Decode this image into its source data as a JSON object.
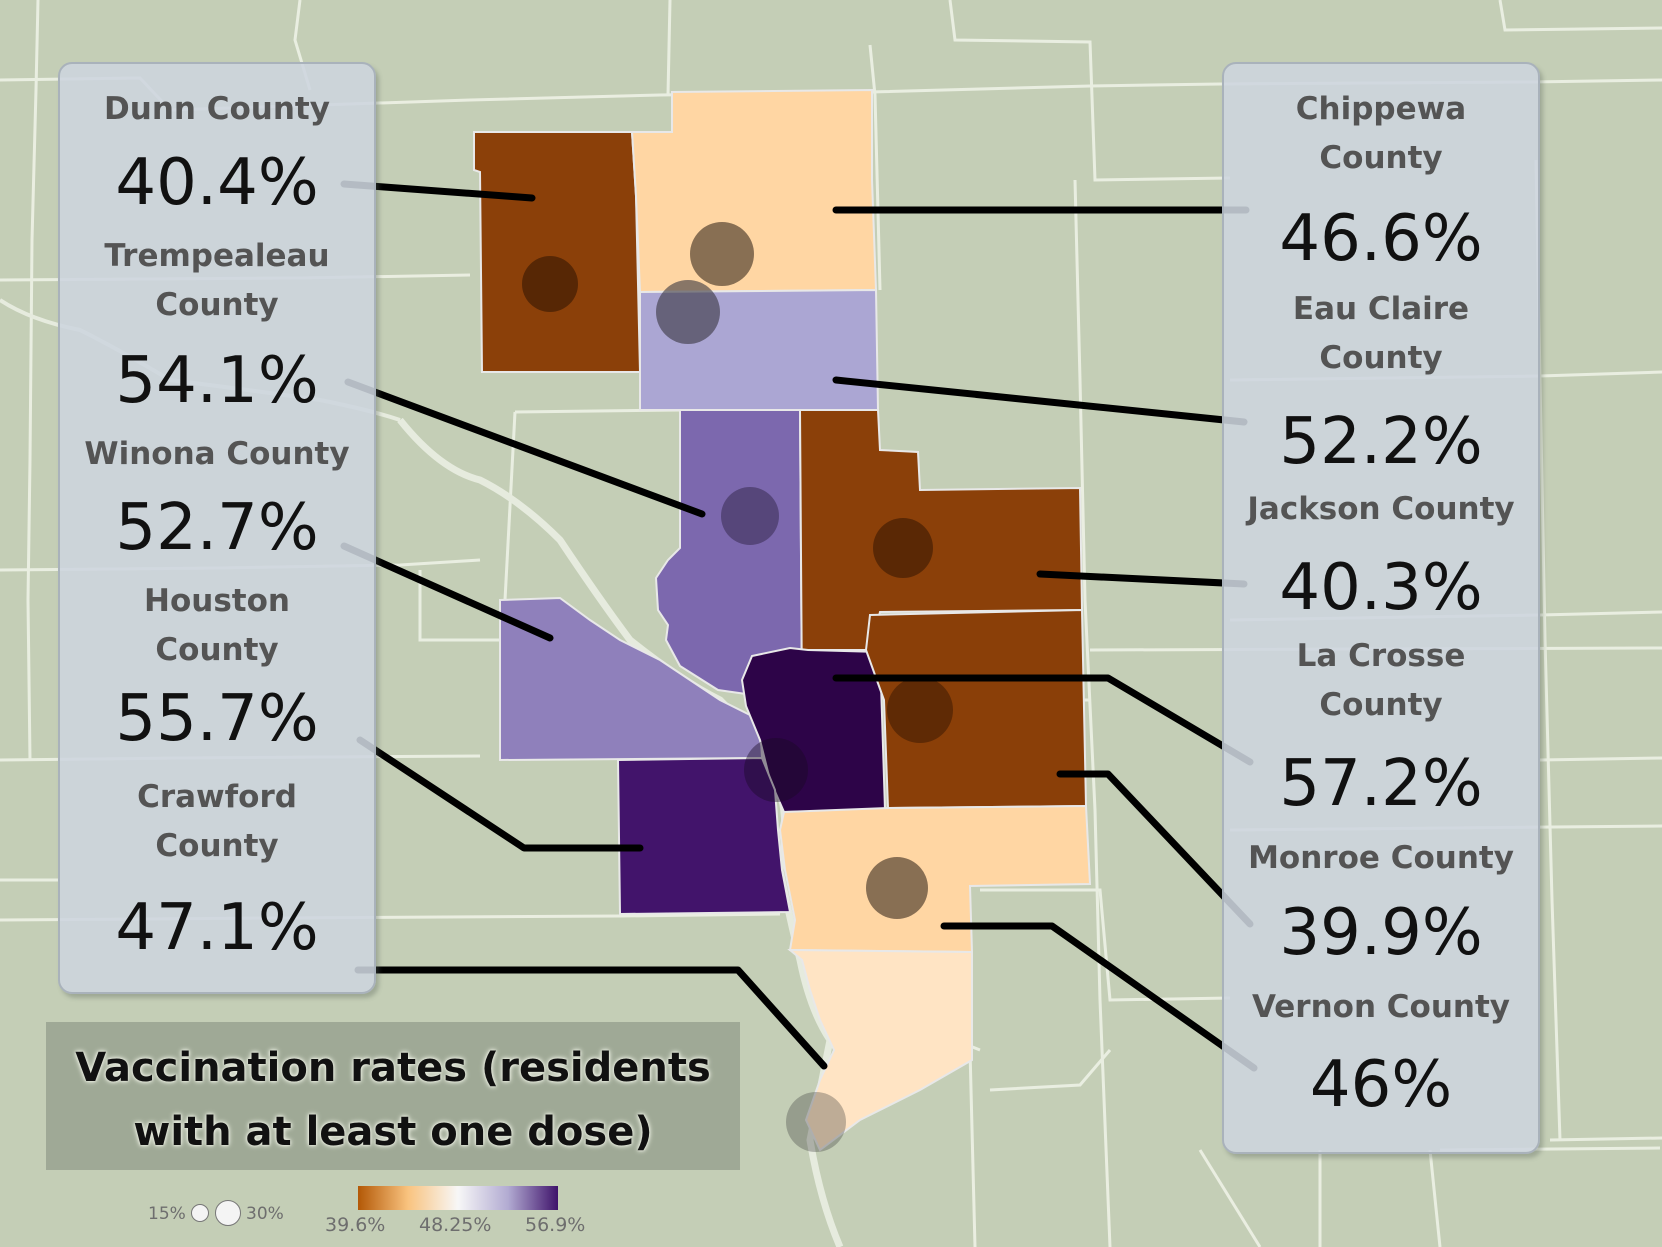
{
  "title": "Vaccination rates (residents with at least one dose)",
  "legend": {
    "size": {
      "min_label": "15%",
      "max_label": "30%"
    },
    "color": {
      "min_label": "39.6%",
      "mid_label": "48.25%",
      "max_label": "56.9%"
    }
  },
  "colors": {
    "lowest": "#8b4009",
    "low": "#8a3f08",
    "light_orange": "#ffd6a3",
    "mid_light": "#ffe4c4",
    "light_purple": "#aba6d3",
    "mid_purple": "#7c68ae",
    "purple": "#8f80bb",
    "dark_purple": "#42146b",
    "darkest_purple": "#2d0448",
    "background": "#c4ceb6"
  },
  "left_panel": [
    {
      "name": "Dunn County",
      "value": "40.4%"
    },
    {
      "name": "Trempealeau County",
      "value": "54.1%"
    },
    {
      "name": "Winona County",
      "value": "52.7%"
    },
    {
      "name": "Houston County",
      "value": "55.7%"
    },
    {
      "name": "Crawford County",
      "value": "47.1%"
    }
  ],
  "right_panel": [
    {
      "name": "Chippewa County",
      "value": "46.6%"
    },
    {
      "name": "Eau Claire County",
      "value": "52.2%"
    },
    {
      "name": "Jackson County",
      "value": "40.3%"
    },
    {
      "name": "La Crosse County",
      "value": "57.2%"
    },
    {
      "name": "Monroe County",
      "value": "39.9%"
    },
    {
      "name": "Vernon County",
      "value": "46%"
    }
  ]
}
